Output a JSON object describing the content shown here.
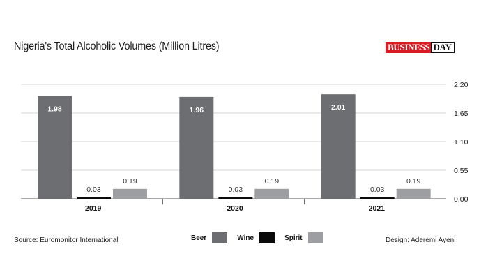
{
  "header": {
    "title": "Nigeria's Total Alcoholic Volumes (Million Litres)",
    "logo_part1": "BUSINESS",
    "logo_part2": "DAY"
  },
  "footer": {
    "source": "Source: Euromonitor International",
    "design": "Design: Aderemi Ayeni"
  },
  "colors": {
    "beer": "#6d6e71",
    "wine": "#0a0a0a",
    "spirit": "#9d9ea1",
    "brand_red": "#d81c22"
  },
  "chart_data": {
    "type": "bar",
    "title": "Nigeria's Total Alcoholic Volumes (Million Litres)",
    "categories": [
      "2019",
      "2020",
      "2021"
    ],
    "series": [
      {
        "name": "Beer",
        "values": [
          1.98,
          1.96,
          2.01
        ],
        "labels": [
          "1.98",
          "1.96",
          "2.01"
        ]
      },
      {
        "name": "Wine",
        "values": [
          0.03,
          0.03,
          0.03
        ],
        "labels": [
          "0.03",
          "0.03",
          "0.03"
        ]
      },
      {
        "name": "Spirit",
        "values": [
          0.19,
          0.19,
          0.19
        ],
        "labels": [
          "0.19",
          "0.19",
          "0.19"
        ]
      }
    ],
    "yticks": [
      "0.00",
      "0.55",
      "1.10",
      "1.65",
      "2.20"
    ],
    "ylim": [
      0,
      2.2
    ],
    "y_axis_side": "right",
    "grid": true,
    "legend_position": "bottom-center",
    "xlabel": "",
    "ylabel": ""
  }
}
